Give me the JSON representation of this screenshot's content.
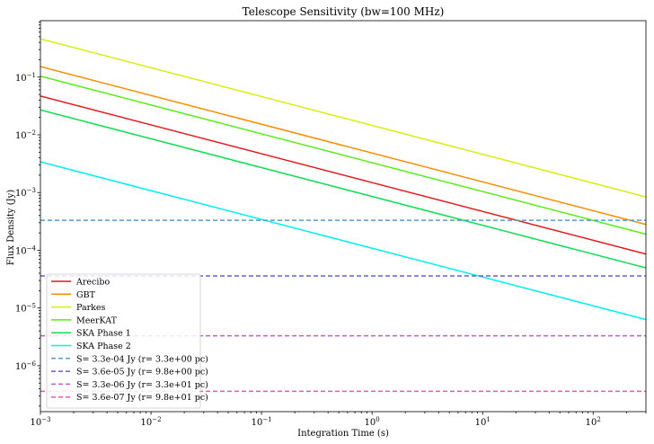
{
  "chart_data": {
    "type": "line",
    "title": "Telescope Sensitivity (bw=100 MHz)",
    "xlabel": "Integration Time (s)",
    "ylabel": "Flux Density (Jy)",
    "xscale": "log",
    "yscale": "log",
    "xlim": [
      0.001,
      300
    ],
    "ylim": [
      1.6e-07,
      0.95
    ],
    "grid": false,
    "legend_position": "lower-left",
    "x_ticks": [
      {
        "value": 0.001,
        "base": "10",
        "exp": "−3"
      },
      {
        "value": 0.01,
        "base": "10",
        "exp": "−2"
      },
      {
        "value": 0.1,
        "base": "10",
        "exp": "−1"
      },
      {
        "value": 1,
        "base": "10",
        "exp": "0"
      },
      {
        "value": 10,
        "base": "10",
        "exp": "1"
      },
      {
        "value": 100,
        "base": "10",
        "exp": "2"
      }
    ],
    "y_ticks": [
      {
        "value": 1e-06,
        "base": "10",
        "exp": "−6"
      },
      {
        "value": 1e-05,
        "base": "10",
        "exp": "−5"
      },
      {
        "value": 0.0001,
        "base": "10",
        "exp": "−4"
      },
      {
        "value": 0.001,
        "base": "10",
        "exp": "−3"
      },
      {
        "value": 0.01,
        "base": "10",
        "exp": "−2"
      },
      {
        "value": 0.1,
        "base": "10",
        "exp": "−1"
      }
    ],
    "series": [
      {
        "name": "Arecibo",
        "color": "#e41a1c",
        "style": "solid",
        "x": [
          0.001,
          300
        ],
        "y": [
          0.047,
          8.6e-05
        ]
      },
      {
        "name": "GBT",
        "color": "#ff8c00",
        "style": "solid",
        "x": [
          0.001,
          300
        ],
        "y": [
          0.152,
          0.00028
        ]
      },
      {
        "name": "Parkes",
        "color": "#d4f00e",
        "style": "solid",
        "x": [
          0.001,
          300
        ],
        "y": [
          0.46,
          0.00084
        ]
      },
      {
        "name": "MeerKAT",
        "color": "#55ee11",
        "style": "solid",
        "x": [
          0.001,
          300
        ],
        "y": [
          0.104,
          0.00019
        ]
      },
      {
        "name": "SKA Phase 1",
        "color": "#11dd55",
        "style": "solid",
        "x": [
          0.001,
          300
        ],
        "y": [
          0.027,
          4.95e-05
        ]
      },
      {
        "name": "SKA Phase 2",
        "color": "#00f0f0",
        "style": "solid",
        "x": [
          0.001,
          300
        ],
        "y": [
          0.0034,
          6.3e-06
        ]
      },
      {
        "name": "S= 3.3e-04 Jy (r= 3.3e+00 pc)",
        "color": "#4a9fe0",
        "style": "dashed",
        "x": [
          0.001,
          300
        ],
        "y": [
          0.00033,
          0.00033
        ]
      },
      {
        "name": "S= 3.6e-05 Jy (r= 9.8e+00 pc)",
        "color": "#6a5be0",
        "style": "dashed",
        "x": [
          0.001,
          300
        ],
        "y": [
          3.6e-05,
          3.6e-05
        ]
      },
      {
        "name": "S= 3.3e-06 Jy (r= 3.3e+01 pc)",
        "color": "#c855e8",
        "style": "dashed",
        "x": [
          0.001,
          300
        ],
        "y": [
          3.3e-06,
          3.3e-06
        ]
      },
      {
        "name": "S= 3.6e-07 Jy (r= 9.8e+01 pc)",
        "color": "#ff4fb0",
        "style": "dashed",
        "x": [
          0.001,
          300
        ],
        "y": [
          3.6e-07,
          3.6e-07
        ]
      }
    ]
  }
}
